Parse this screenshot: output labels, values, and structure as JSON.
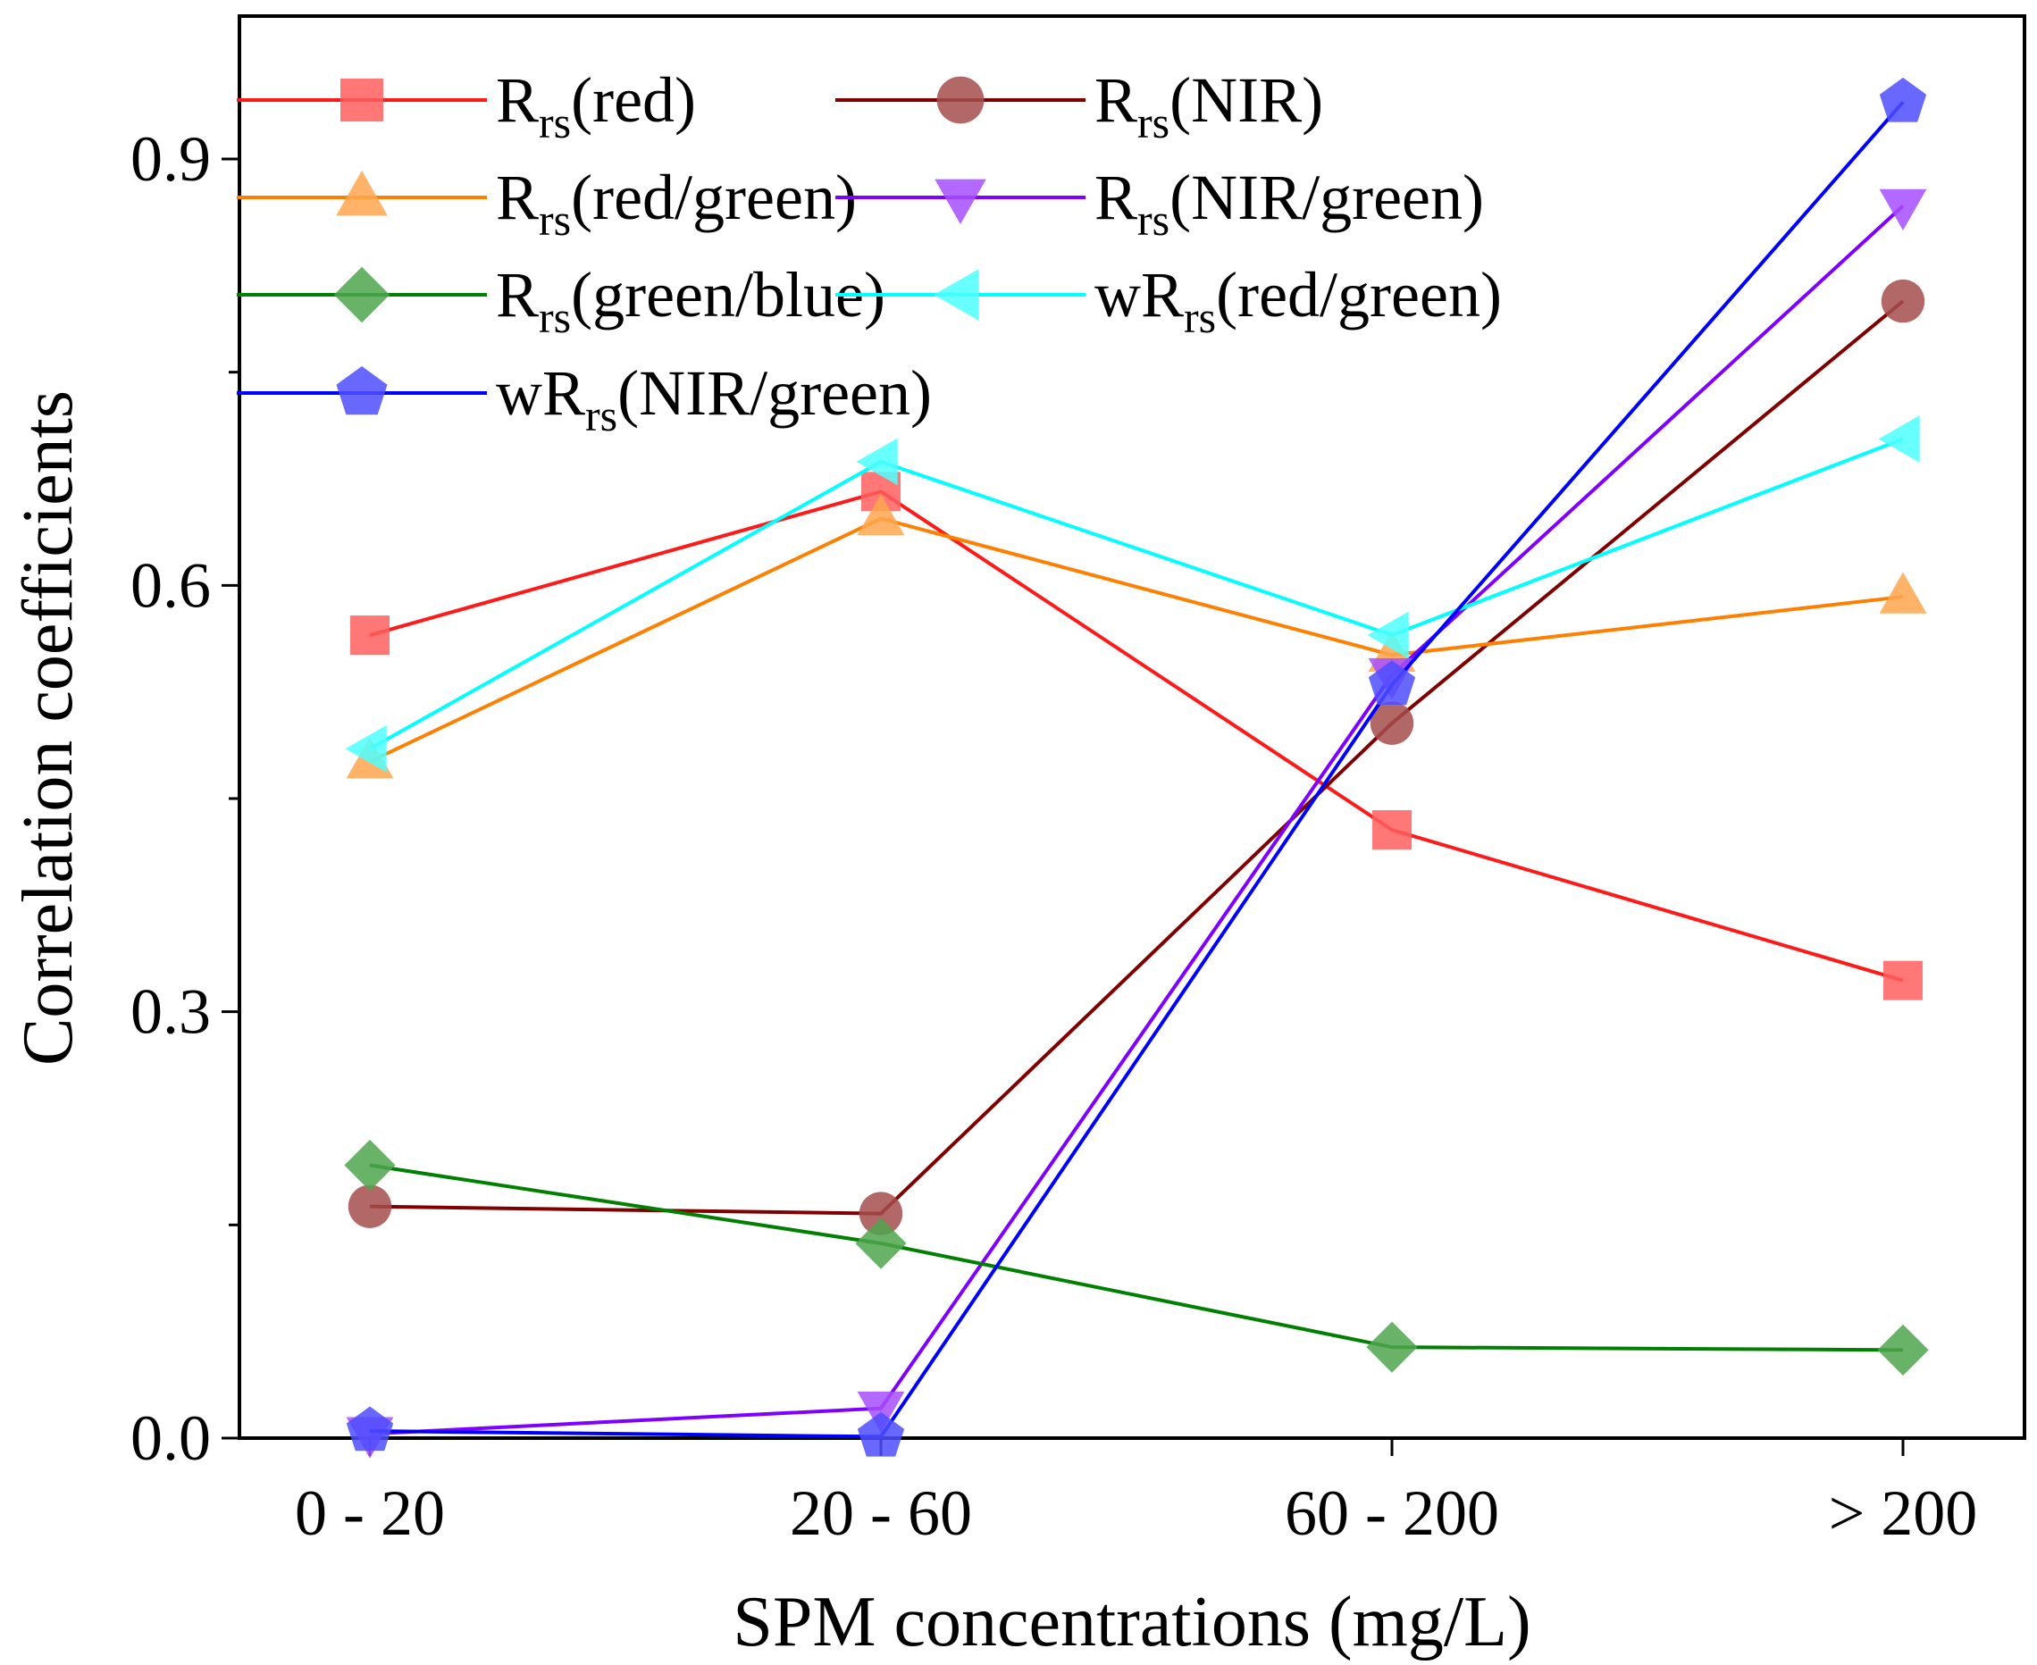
{
  "chart_data": {
    "type": "line",
    "title": "",
    "xlabel": "SPM concentrations (mg/L)",
    "ylabel": "Correlation coefficients",
    "categories": [
      "0 - 20",
      "20 - 60",
      "60 - 200",
      "> 200"
    ],
    "ylim": [
      0.0,
      0.9
    ],
    "yticks": [
      "0.0",
      "0.3",
      "0.6",
      "0.9"
    ],
    "grid": false,
    "legend_position": "top-left",
    "series": [
      {
        "name": "Rrs(red)",
        "prefix": "",
        "sub": "rs",
        "suffix": "(red)",
        "color": "#ff1a1a",
        "marker": "square",
        "values": [
          0.565,
          0.666,
          0.428,
          0.322
        ]
      },
      {
        "name": "Rrs(NIR)",
        "prefix": "",
        "sub": "rs",
        "suffix": "(NIR)",
        "color": "#800000",
        "marker": "circle",
        "values": [
          0.163,
          0.158,
          0.503,
          0.8
        ]
      },
      {
        "name": "Rrs(red/green)",
        "prefix": "",
        "sub": "rs",
        "suffix": "(red/green)",
        "color": "#ff8000",
        "marker": "triangle-up",
        "values": [
          0.476,
          0.647,
          0.551,
          0.592
        ]
      },
      {
        "name": "Rrs(NIR/green)",
        "prefix": "",
        "sub": "rs",
        "suffix": "(NIR/green)",
        "color": "#8000ff",
        "marker": "triangle-down",
        "values": [
          0.003,
          0.021,
          0.537,
          0.867
        ]
      },
      {
        "name": "Rrs(green/blue)",
        "prefix": "",
        "sub": "rs",
        "suffix": "(green/blue)",
        "color": "#008000",
        "marker": "diamond",
        "values": [
          0.192,
          0.137,
          0.064,
          0.062
        ]
      },
      {
        "name": "wRrs(red/green)",
        "prefix": "w",
        "sub": "rs",
        "suffix": "(red/green)",
        "color": "#00ffff",
        "marker": "triangle-left",
        "values": [
          0.485,
          0.687,
          0.565,
          0.703
        ]
      },
      {
        "name": "wRrs(NIR/green)",
        "prefix": "w",
        "sub": "rs",
        "suffix": "(NIR/green)",
        "color": "#0000ff",
        "marker": "pentagon",
        "values": [
          0.005,
          0.001,
          0.53,
          0.94
        ]
      }
    ]
  }
}
